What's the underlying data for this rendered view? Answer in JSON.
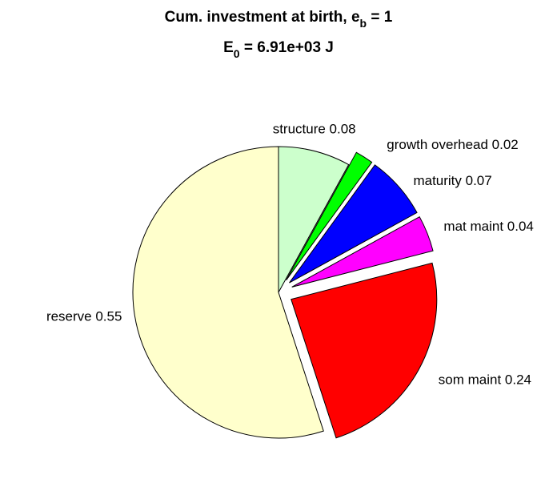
{
  "chart_data": {
    "type": "pie",
    "title": {
      "line1_main": "Cum. investment at birth, e",
      "line1_sub": "b",
      "line1_tail": " = 1",
      "line2_main": "E",
      "line2_sub": "0",
      "line2_tail": " = 6.91e+03 J"
    },
    "slices": [
      {
        "name": "structure",
        "value": 0.08,
        "label": "structure 0.08",
        "color": "#ccffcc",
        "exploded": false
      },
      {
        "name": "growth overhead",
        "value": 0.02,
        "label": "growth overhead 0.02",
        "color": "#00ff00",
        "exploded": true
      },
      {
        "name": "maturity",
        "value": 0.07,
        "label": "maturity 0.07",
        "color": "#0000ff",
        "exploded": true
      },
      {
        "name": "mat maint",
        "value": 0.04,
        "label": "mat maint 0.04",
        "color": "#ff00ff",
        "exploded": true
      },
      {
        "name": "som maint",
        "value": 0.24,
        "label": "som maint 0.24",
        "color": "#ff0000",
        "exploded": true
      },
      {
        "name": "reserve",
        "value": 0.55,
        "label": "reserve 0.55",
        "color": "#ffffcc",
        "exploded": false
      }
    ]
  }
}
